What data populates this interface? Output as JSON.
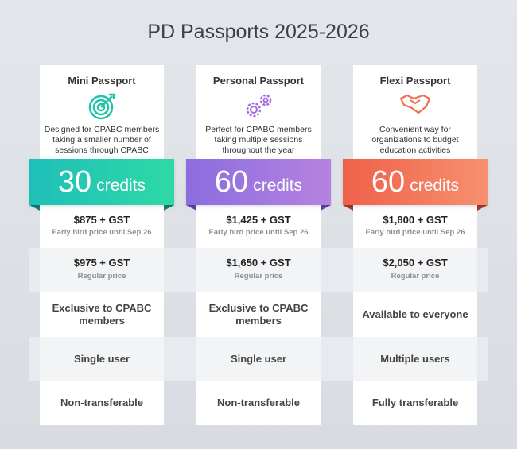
{
  "header": {
    "title": "PD Passports 2025-2026"
  },
  "plans": [
    {
      "name": "Mini Passport",
      "description": "Designed for CPABC members taking a smaller number of sessions through CPABC",
      "credits": 30,
      "credits_unit": "credits",
      "early_price": "$875 + GST",
      "early_note": "Early bird price until Sep 26",
      "regular_price": "$975 + GST",
      "regular_note": "Regular price",
      "eligibility": "Exclusive to CPABC members",
      "users": "Single user",
      "transferability": "Non-transferable"
    },
    {
      "name": "Personal Passport",
      "description": "Perfect for CPABC members taking multiple sessions throughout the year",
      "credits": 60,
      "credits_unit": "credits",
      "early_price": "$1,425 + GST",
      "early_note": "Early bird price until Sep 26",
      "regular_price": "$1,650 + GST",
      "regular_note": "Regular price",
      "eligibility": "Exclusive to CPABC members",
      "users": "Single user",
      "transferability": "Non-transferable"
    },
    {
      "name": "Flexi Passport",
      "description": "Convenient way for organizations to budget education activities",
      "credits": 60,
      "credits_unit": "credits",
      "early_price": "$1,800 + GST",
      "early_note": "Early bird price until Sep 26",
      "regular_price": "$2,050 + GST",
      "regular_note": "Regular price",
      "eligibility": "Available to everyone",
      "users": "Multiple users",
      "transferability": "Fully transferable"
    }
  ]
}
